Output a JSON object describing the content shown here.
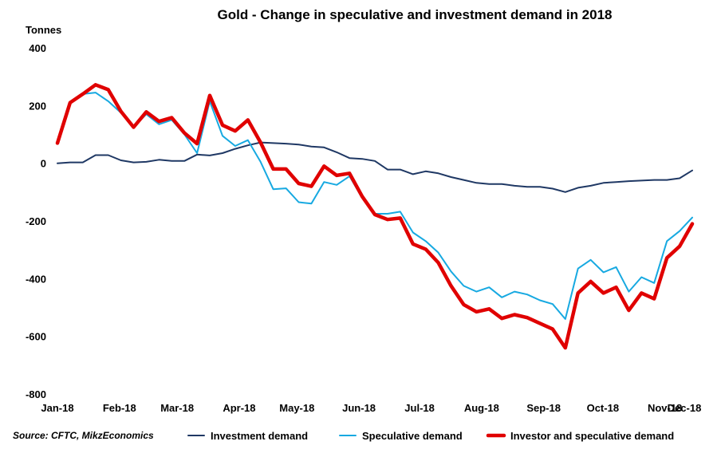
{
  "chart_data": {
    "type": "line",
    "title": "Gold - Change in speculative and investment demand in 2018",
    "ylabel": "Tonnes",
    "ylim": [
      -800,
      400
    ],
    "yticks": [
      "400",
      "200",
      "0",
      "-200",
      "-400",
      "-600",
      "-800"
    ],
    "ytick_values": [
      400,
      200,
      0,
      -200,
      -400,
      -600,
      -800
    ],
    "x_range": [
      0,
      44
    ],
    "xticks": [
      {
        "label": "Jan-18",
        "x": 0
      },
      {
        "label": "Feb-18",
        "x": 4.3
      },
      {
        "label": "Mar-18",
        "x": 8.3
      },
      {
        "label": "Apr-18",
        "x": 12.6
      },
      {
        "label": "May-18",
        "x": 16.6
      },
      {
        "label": "Jun-18",
        "x": 20.9
      },
      {
        "label": "Jul-18",
        "x": 25.1
      },
      {
        "label": "Aug-18",
        "x": 29.4
      },
      {
        "label": "Sep-18",
        "x": 33.7
      },
      {
        "label": "Oct-18",
        "x": 37.8
      },
      {
        "label": "Nov-18",
        "x": 42.1
      },
      {
        "label": "Dec-18",
        "x": 46.3
      }
    ],
    "source": "Source: CFTC, MikzEconomics",
    "legend_position": "bottom",
    "series": [
      {
        "name": "Investment demand",
        "color": "#1f3864",
        "width": 2,
        "values": [
          0,
          3,
          3,
          28,
          28,
          10,
          3,
          5,
          12,
          8,
          8,
          30,
          27,
          35,
          50,
          62,
          72,
          70,
          68,
          65,
          58,
          55,
          38,
          18,
          15,
          8,
          -22,
          -22,
          -38,
          -28,
          -35,
          -48,
          -58,
          -68,
          -72,
          -72,
          -78,
          -82,
          -82,
          -88,
          -100,
          -85,
          -78,
          -68,
          -65,
          -62,
          -60,
          -58,
          -58,
          -52,
          -25
        ]
      },
      {
        "name": "Speculative demand",
        "color": "#17a9e1",
        "width": 2,
        "values": [
          75,
          210,
          240,
          245,
          215,
          175,
          125,
          170,
          135,
          150,
          100,
          35,
          215,
          95,
          60,
          80,
          5,
          -90,
          -87,
          -135,
          -140,
          -65,
          -75,
          -45,
          -120,
          -175,
          -175,
          -168,
          -240,
          -270,
          -310,
          -375,
          -425,
          -445,
          -430,
          -465,
          -445,
          -455,
          -475,
          -488,
          -540,
          -365,
          -335,
          -378,
          -360,
          -445,
          -395,
          -415,
          -270,
          -235,
          -188
        ]
      },
      {
        "name": "Investor and speculative demand",
        "color": "#e00000",
        "width": 4.5,
        "values": [
          70,
          210,
          240,
          272,
          255,
          180,
          125,
          178,
          145,
          158,
          105,
          68,
          235,
          132,
          112,
          150,
          72,
          -20,
          -20,
          -70,
          -80,
          -10,
          -42,
          -35,
          -115,
          -178,
          -195,
          -190,
          -280,
          -298,
          -345,
          -425,
          -490,
          -515,
          -505,
          -538,
          -525,
          -535,
          -555,
          -575,
          -640,
          -450,
          -410,
          -450,
          -430,
          -510,
          -450,
          -470,
          -328,
          -288,
          -210
        ]
      }
    ]
  }
}
